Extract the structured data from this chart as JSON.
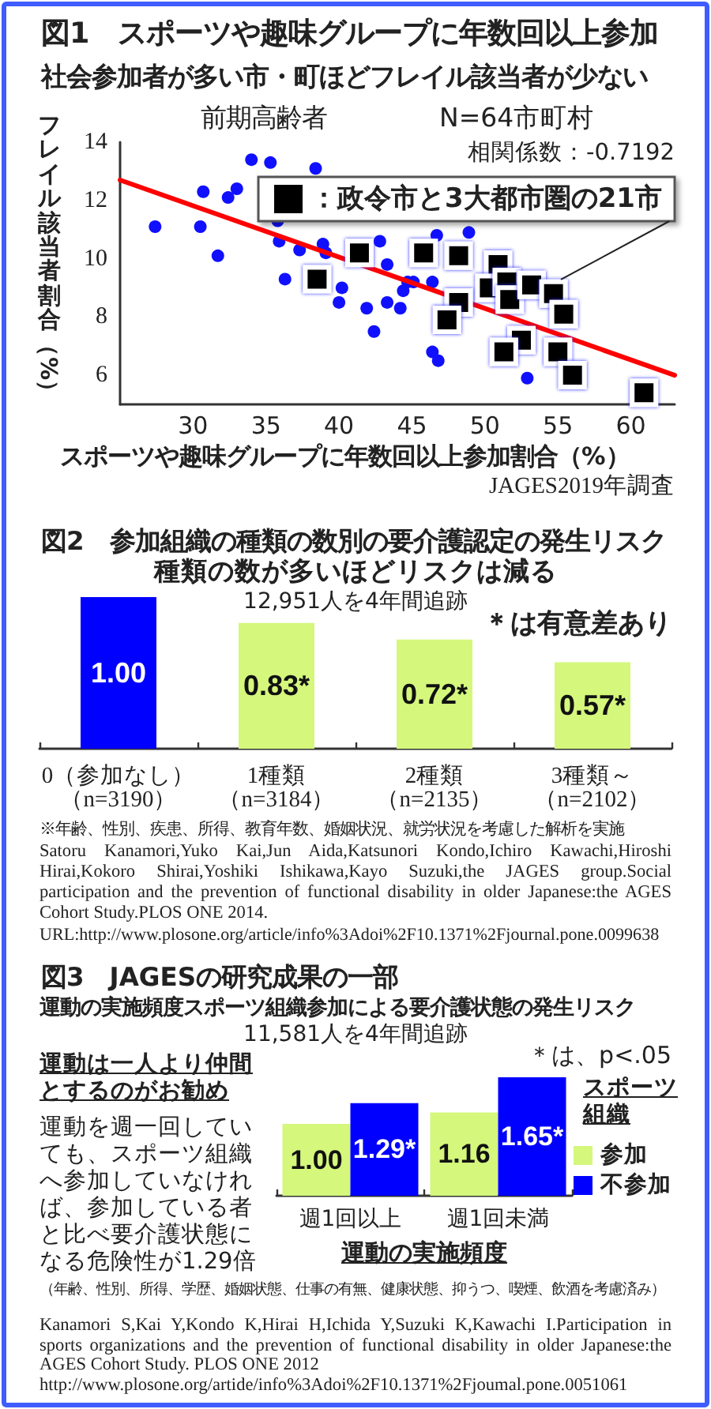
{
  "chart_data": [
    {
      "type": "scatter",
      "title": "図1　スポーツや趣味グループに年数回以上参加",
      "subtitle": "社会参加者が多い市・町ほどフレイル該当者が少ない",
      "xlabel": "スポーツや趣味グループに年数回以上参加割合（%）",
      "ylabel": "フレイル該当者割合（%）",
      "annotations": [
        "前期高齢者",
        "N=64市町村",
        "相関係数：-0.7192",
        "JAGES2019年調査"
      ],
      "xlim": [
        25,
        63
      ],
      "xticks": [
        30,
        35,
        40,
        45,
        50,
        55,
        60
      ],
      "ylim": [
        5,
        14
      ],
      "yticks": [
        6,
        8,
        10,
        12,
        14
      ],
      "legend": "top right",
      "series": [
        {
          "color": "#1010ff",
          "marker": "circle",
          "x": [
            27.4,
            30.5,
            30.7,
            31.7,
            32.4,
            33.0,
            34.0,
            35.3,
            35.8,
            35.9,
            36.3,
            37.3,
            38.4,
            38.9,
            39.1,
            40.2,
            40.0,
            41.9,
            42.4,
            42.8,
            43.3,
            43.3,
            44.2,
            44.4,
            44.7,
            45.1,
            46.4,
            46.8,
            46.7,
            46.4,
            48.9,
            52.9
          ],
          "values": [
            11.1,
            11.1,
            12.3,
            10.1,
            12.1,
            12.4,
            13.4,
            13.3,
            11.3,
            10.6,
            9.3,
            10.3,
            13.1,
            10.5,
            10.2,
            9.0,
            8.5,
            8.3,
            7.5,
            10.6,
            9.8,
            8.5,
            8.3,
            8.9,
            9.2,
            9.2,
            6.8,
            6.5,
            10.8,
            9.2,
            10.9,
            5.9
          ]
        },
        {
          "type": "line",
          "color": "#ff0000",
          "marker": "none",
          "x": [
            25,
            63
          ],
          "values": [
            12.7,
            6.0
          ]
        },
        {
          "name": "：政令市と3大都市圏の21市",
          "color": "#000000",
          "marker": "square",
          "x": [
            38.5,
            41.4,
            45.8,
            48.2,
            50.9,
            50.3,
            51.5,
            51.7,
            53.2,
            54.7,
            48.2,
            47.4,
            55.4,
            52.5,
            51.3,
            55.0,
            56.0,
            60.9
          ],
          "values": [
            9.3,
            10.2,
            10.2,
            10.1,
            9.8,
            9.0,
            9.2,
            8.6,
            9.1,
            8.8,
            8.5,
            7.9,
            8.1,
            7.2,
            6.8,
            6.8,
            6.0,
            5.4
          ]
        }
      ]
    },
    {
      "type": "bar",
      "title": "図2　参加組織の種類の数別の要介護認定の発生リスク",
      "subtitle": "種類の数が多いほどリスクは減る",
      "annotations": [
        "12,951人を4年間追跡",
        "＊は有意差あり",
        "※年齢、性別、疾患、所得、教育年数、婚姻状況、就労状況を考慮した解析を実施",
        "Satoru Kanamori,Yuko Kai,Jun Aida,Katsunori Kondo,Ichiro Kawachi,Hiroshi Hirai,Kokoro Shirai,Yoshiki Ishikawa,Kayo Suzuki,the JAGES group.Social participation and the prevention of functional disability in older Japanese:the AGES Cohort Study.PLOS ONE 2014.",
        "URL:http://www.plosone.org/article/info%3Adoi%2F10.1371%2Fjournal.pone.0099638"
      ],
      "categories": [
        "0（参加なし）（n=3190）",
        "1種類（n=3184）",
        "2種類（n=2135）",
        "3種類～（n=2102）"
      ],
      "values": [
        1.0,
        0.83,
        0.72,
        0.57
      ],
      "colors": [
        "#0000ff",
        "#d4f77c",
        "#d4f77c",
        "#d4f77c"
      ],
      "value_labels": [
        "1.00",
        "0.83*",
        "0.72*",
        "0.57*"
      ]
    },
    {
      "type": "bar",
      "title": "図3　JAGESの研究成果の一部",
      "subtitle": "運動の実施頻度スポーツ組織参加による要介護状態の発生リスク",
      "xlabel": "運動の実施頻度",
      "legend_title": "スポーツ組織",
      "legend": "right",
      "annotations": [
        "11,581人を4年間追跡",
        "＊は、p<.05",
        "運動は一人より仲間とするのがお勧め",
        "運動を週一回していても、スポーツ組織へ参加していなければ、参加している者と比べ要介護状態になる危険性が1.29倍",
        "（年齢、性別、所得、学歴、婚姻状態、仕事の有無、健康状態、抑うつ、喫煙、飲酒を考慮済み）",
        "Kanamori S,Kai Y,Kondo K,Hirai H,Ichida Y,Suzuki K,Kawachi I.Participation in sports organizations and the prevention of functional disability in older Japanese:the AGES Cohort Study. PLOS ONE 2012",
        "http://www.plosone.org/artide/info%3Adoi%2F10.1371%2Fjoumal.pone.0051061"
      ],
      "categories": [
        "週1回以上",
        "週1回未満"
      ],
      "series": [
        {
          "name": "参加",
          "color": "#d4f77c",
          "values": [
            1.0,
            1.16
          ],
          "value_labels": [
            "1.00",
            "1.16"
          ]
        },
        {
          "name": "不参加",
          "color": "#0000ff",
          "values": [
            1.29,
            1.65
          ],
          "value_labels": [
            "1.29*",
            "1.65*"
          ]
        }
      ]
    }
  ]
}
